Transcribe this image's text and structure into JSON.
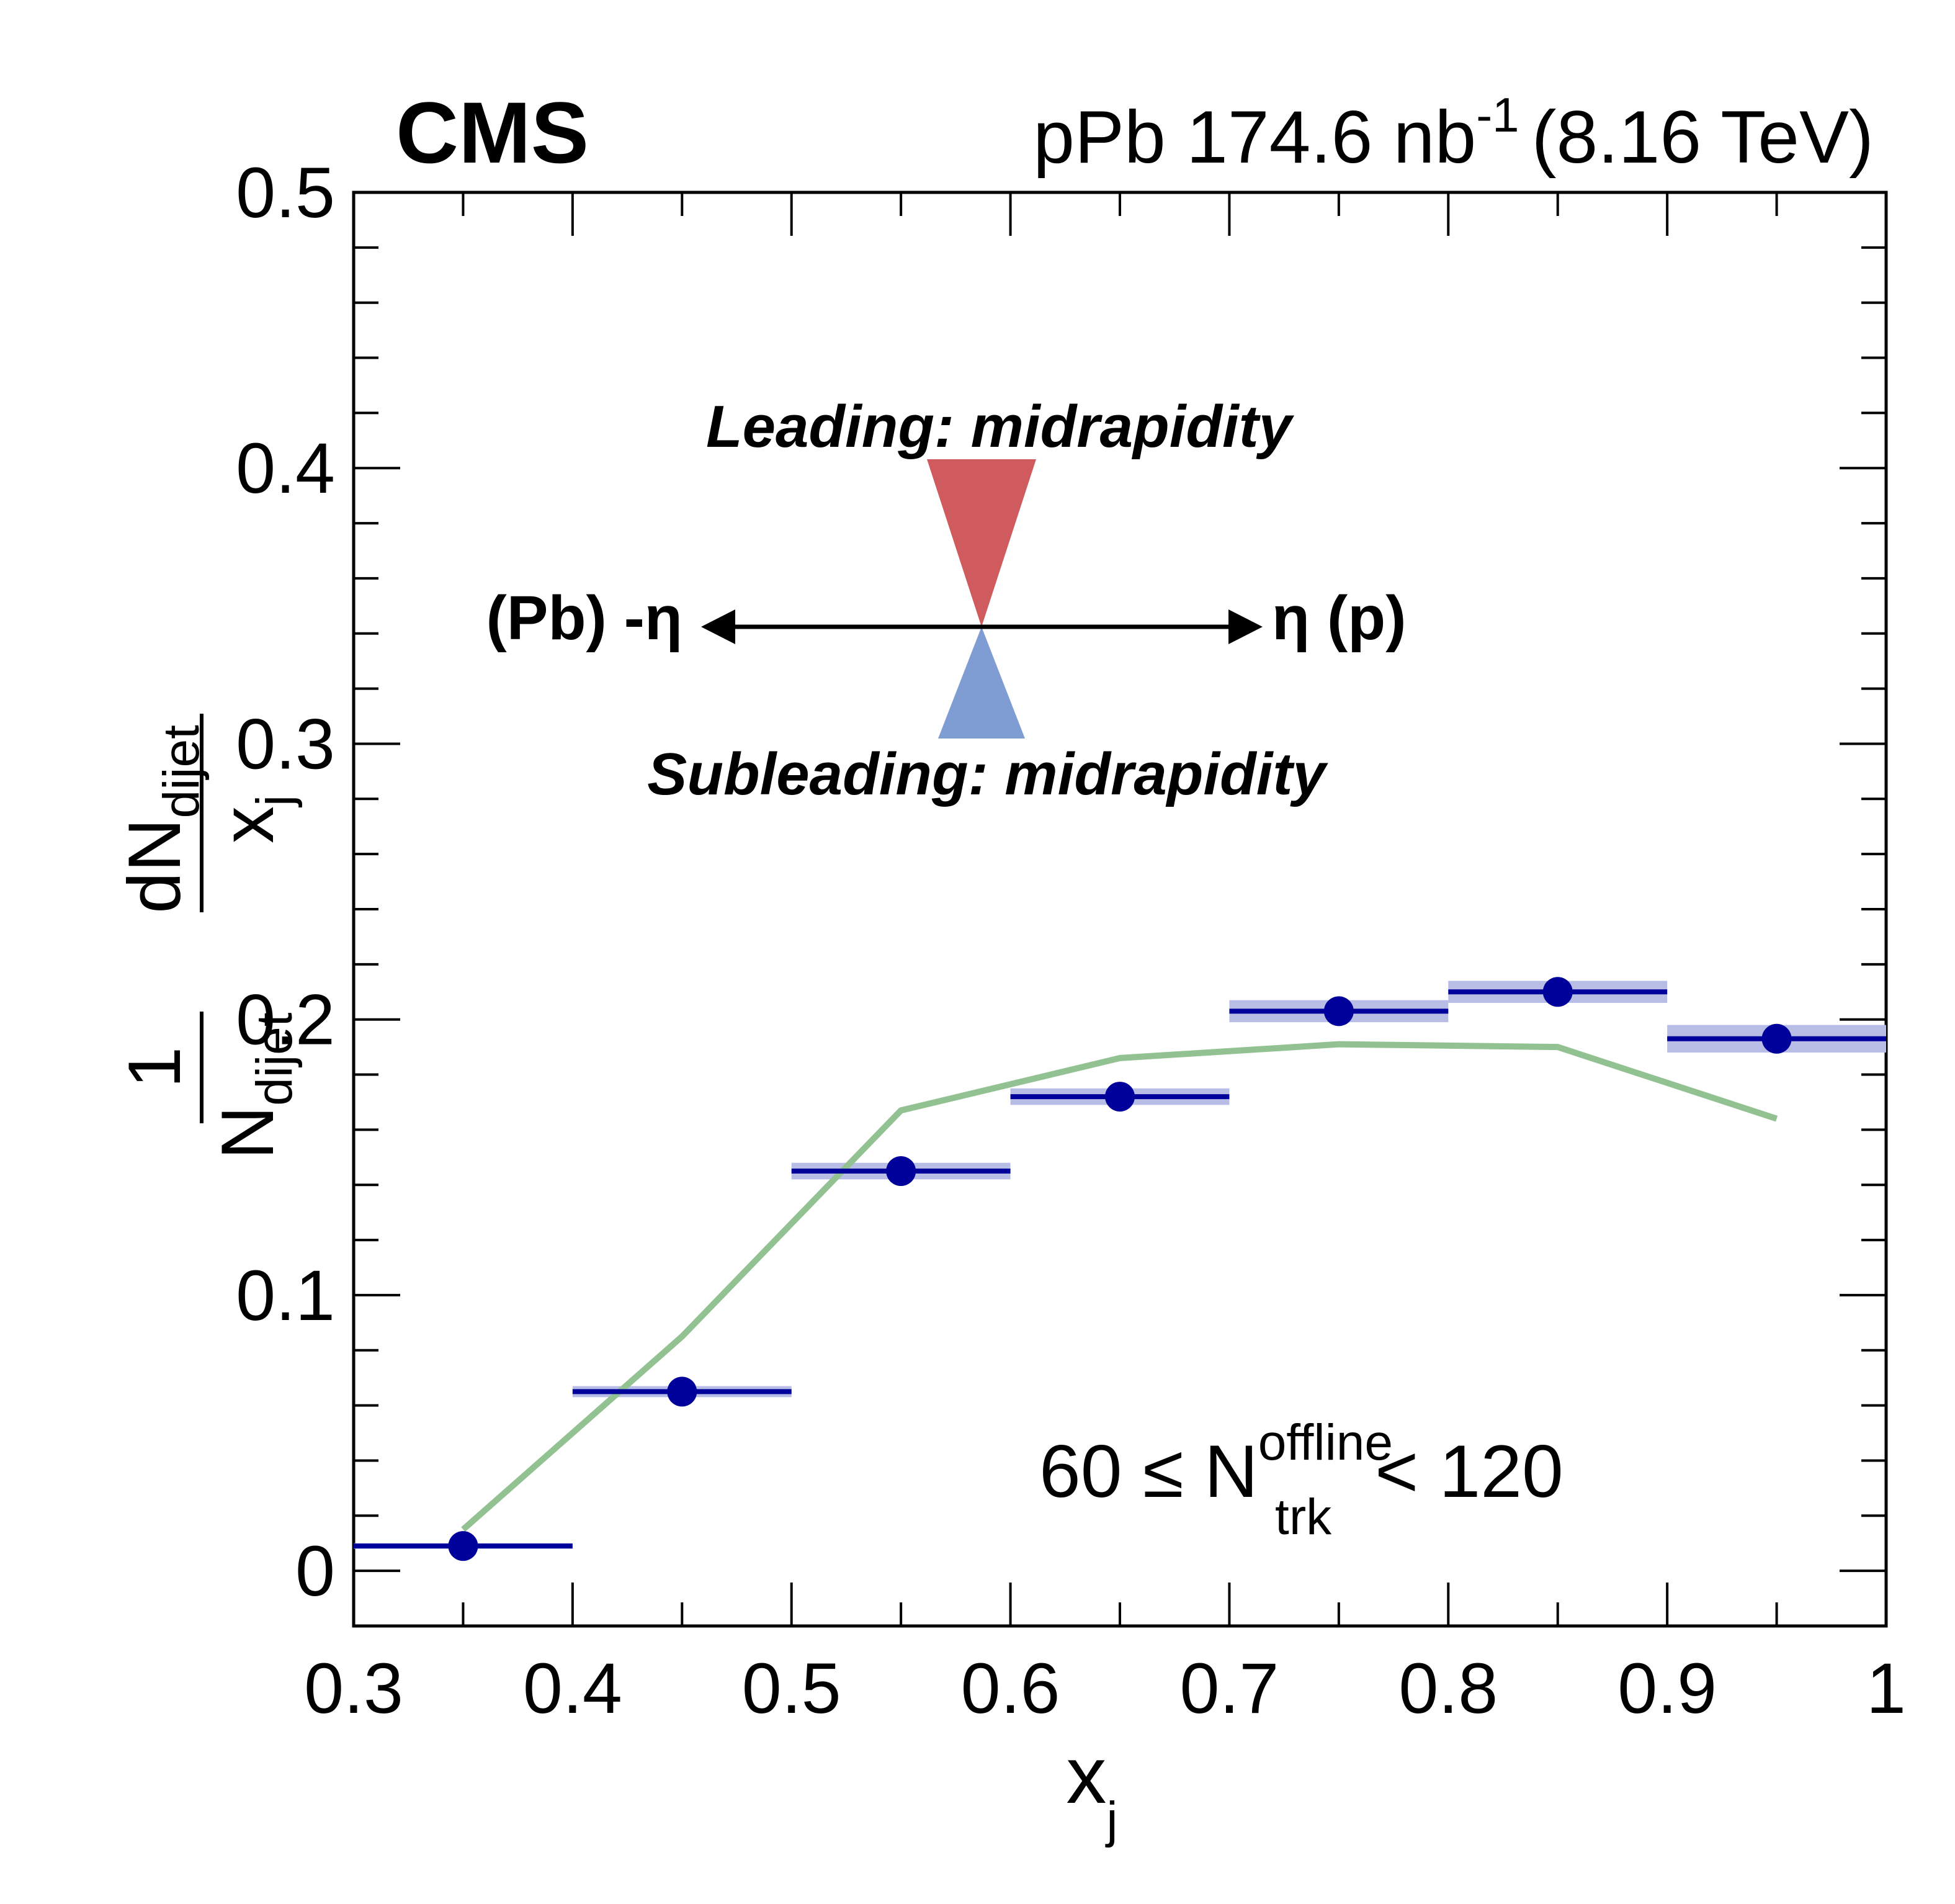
{
  "chart_data": {
    "type": "scatter",
    "experiment": "CMS",
    "luminosity_label": "pPb 174.6 nb",
    "luminosity_exp": "-1",
    "energy_label": "(8.16 TeV)",
    "xlabel": {
      "base": "x",
      "sub": "j"
    },
    "ylabel": {
      "one": "1",
      "den_base": "N",
      "den_sub": "dijet",
      "num_base": "dN",
      "num_sub": "dijet",
      "num_den_base": "x",
      "num_den_sub": "j"
    },
    "xlim": [
      0.3,
      1.0
    ],
    "ylim": [
      -0.02,
      0.5
    ],
    "x_ticks": [
      "0.3",
      "0.4",
      "0.5",
      "0.6",
      "0.7",
      "0.8",
      "0.9",
      "1"
    ],
    "y_ticks": [
      "0",
      "0.1",
      "0.2",
      "0.3",
      "0.4",
      "0.5"
    ],
    "annotations": {
      "leading": "Leading: midrapidity",
      "subleading": "Subleading: midrapidity",
      "left_axis": "(Pb) -η",
      "right_axis": "η (p)",
      "selection": {
        "pre": "60 ≤ N",
        "sup": "offline",
        "sub": "trk",
        "post": "< 120"
      }
    },
    "colors": {
      "data": "#00009a",
      "band": "#b8bde6",
      "model": "#92c192",
      "leading": "#d05b5e",
      "subleading": "#7f9cd3"
    },
    "series": [
      {
        "x": [
          0.35,
          0.45,
          0.55,
          0.65,
          0.75,
          0.85,
          0.95
        ],
        "y": [
          0.009,
          0.065,
          0.145,
          0.172,
          0.203,
          0.21,
          0.193
        ],
        "x_bins": [
          [
            0.3,
            0.4
          ],
          [
            0.4,
            0.5
          ],
          [
            0.5,
            0.6
          ],
          [
            0.6,
            0.7
          ],
          [
            0.7,
            0.8
          ],
          [
            0.8,
            0.9
          ],
          [
            0.9,
            1.0
          ]
        ],
        "syst": [
          0.001,
          0.002,
          0.003,
          0.003,
          0.004,
          0.004,
          0.005
        ]
      },
      {
        "x": [
          0.35,
          0.45,
          0.55,
          0.65,
          0.75,
          0.85,
          0.95
        ],
        "y": [
          0.015,
          0.085,
          0.167,
          0.186,
          0.191,
          0.19,
          0.164
        ]
      }
    ]
  }
}
